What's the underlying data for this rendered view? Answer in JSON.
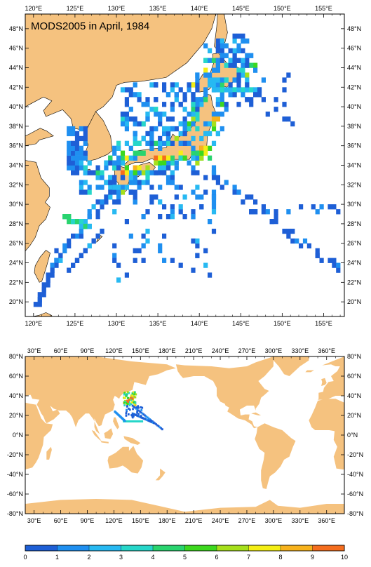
{
  "title": "MODS2005 in April, 1984",
  "top_map": {
    "lon_range": [
      119,
      157.5
    ],
    "lat_range": [
      18.5,
      49.5
    ],
    "lon_ticks": [
      "120°E",
      "125°E",
      "130°E",
      "135°E",
      "140°E",
      "145°E",
      "150°E",
      "155°E"
    ],
    "lon_tick_values": [
      120,
      125,
      130,
      135,
      140,
      145,
      150,
      155
    ],
    "lat_ticks": [
      "20°N",
      "22°N",
      "24°N",
      "26°N",
      "28°N",
      "30°N",
      "32°N",
      "34°N",
      "36°N",
      "38°N",
      "40°N",
      "42°N",
      "44°N",
      "46°N",
      "48°N"
    ],
    "lat_tick_values": [
      20,
      22,
      24,
      26,
      28,
      30,
      32,
      34,
      36,
      38,
      40,
      42,
      44,
      46,
      48
    ]
  },
  "bottom_map": {
    "lon_range": [
      20,
      380
    ],
    "lat_range": [
      -80,
      80
    ],
    "lon_ticks": [
      "30°E",
      "60°E",
      "90°E",
      "120°E",
      "150°E",
      "180°E",
      "210°E",
      "240°E",
      "270°E",
      "300°E",
      "330°E",
      "360°E"
    ],
    "lon_tick_values": [
      30,
      60,
      90,
      120,
      150,
      180,
      210,
      240,
      270,
      300,
      330,
      360
    ],
    "lat_ticks": [
      "80°N",
      "60°N",
      "40°N",
      "20°N",
      "0°N",
      "-20°N",
      "-40°N",
      "-60°N",
      "-80°N"
    ],
    "lat_tick_values": [
      80,
      60,
      40,
      20,
      0,
      -20,
      -40,
      -60,
      -80
    ]
  },
  "colorbar": {
    "labels": [
      "0",
      "1",
      "2",
      "3",
      "4",
      "5",
      "6",
      "7",
      "8",
      "9",
      "10"
    ],
    "colors": [
      "#1e5fd6",
      "#1f8ff0",
      "#27b9f2",
      "#26d6c9",
      "#29d46e",
      "#3cd81e",
      "#a6e01b",
      "#f4ee14",
      "#f7b21c",
      "#f56d1e"
    ]
  }
}
